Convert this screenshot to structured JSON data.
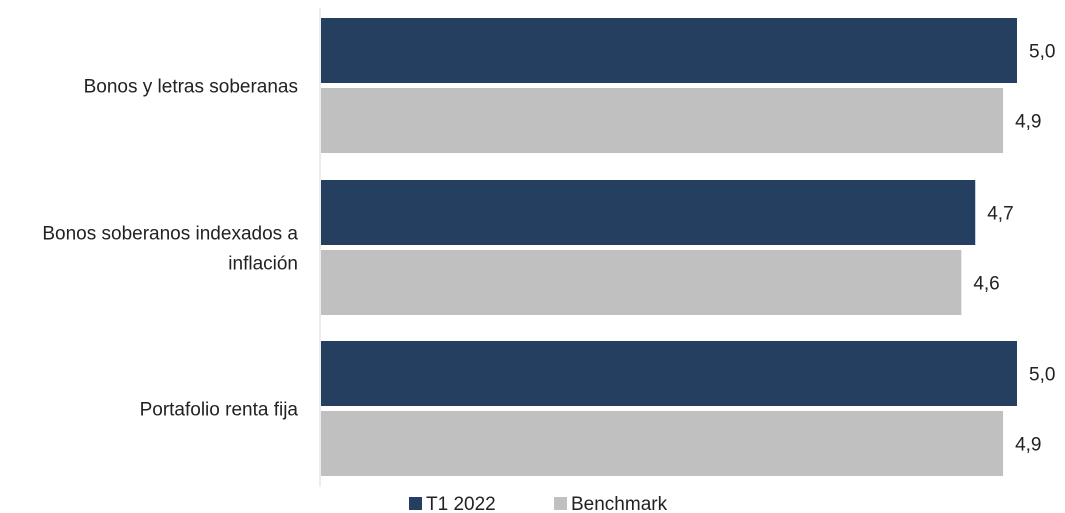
{
  "chart_data": {
    "type": "bar",
    "orientation": "horizontal",
    "categories": [
      [
        "Bonos y letras soberanas"
      ],
      [
        "Bonos soberanos indexados a",
        "inflación"
      ],
      [
        "Portafolio renta fija"
      ]
    ],
    "series": [
      {
        "name": "T1 2022",
        "values": [
          5.0,
          4.7,
          5.0
        ],
        "labels": [
          "5,0",
          "4,7",
          "5,0"
        ],
        "color": "#253f61"
      },
      {
        "name": "Benchmark",
        "values": [
          4.9,
          4.6,
          4.9
        ],
        "labels": [
          "4,9",
          "4,6",
          "4,9"
        ],
        "color": "#c0c0c0"
      }
    ],
    "xlim": [
      0,
      5.0
    ],
    "grid": false,
    "legend": "bottom-center",
    "axis_color": "#d9d9d9"
  }
}
